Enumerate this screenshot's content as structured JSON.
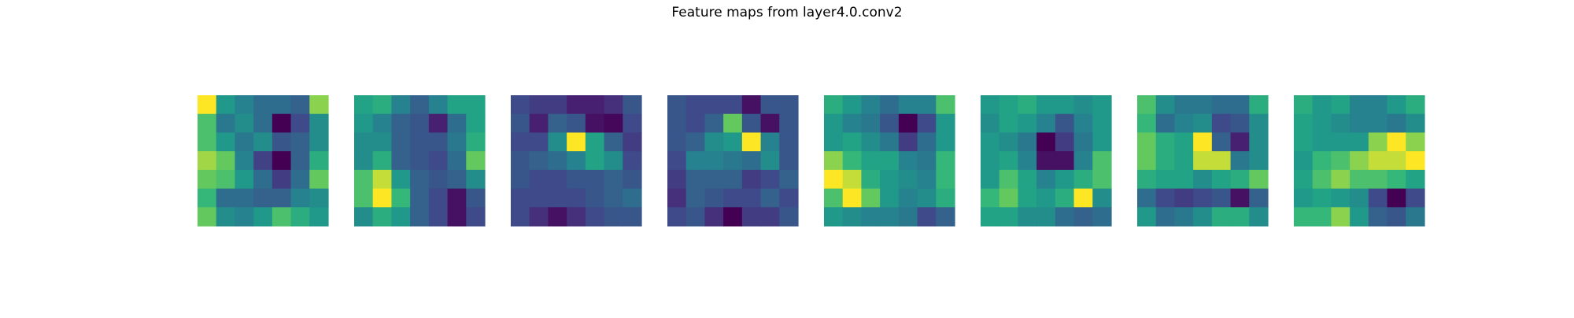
{
  "figure": {
    "title": "Feature maps from layer4.0.conv2"
  },
  "colormap": "viridis",
  "chart_data": {
    "type": "heatmap",
    "title": "Feature maps from layer4.0.conv2",
    "grid": false,
    "axes": "off",
    "value_range": [
      0,
      1
    ],
    "maps": [
      {
        "values": [
          [
            1.0,
            0.6,
            0.5,
            0.4,
            0.4,
            0.35,
            0.9
          ],
          [
            0.8,
            0.45,
            0.55,
            0.4,
            0.0,
            0.25,
            0.55
          ],
          [
            0.8,
            0.6,
            0.45,
            0.55,
            0.3,
            0.35,
            0.55
          ],
          [
            0.92,
            0.85,
            0.5,
            0.22,
            0.0,
            0.35,
            0.7
          ],
          [
            0.85,
            0.8,
            0.6,
            0.4,
            0.2,
            0.4,
            0.85
          ],
          [
            0.75,
            0.4,
            0.4,
            0.35,
            0.35,
            0.5,
            0.55
          ],
          [
            0.85,
            0.55,
            0.5,
            0.6,
            0.8,
            0.7,
            0.6
          ]
        ]
      },
      {
        "values": [
          [
            0.65,
            0.7,
            0.5,
            0.35,
            0.5,
            0.65,
            0.65
          ],
          [
            0.6,
            0.5,
            0.35,
            0.3,
            0.1,
            0.4,
            0.65
          ],
          [
            0.55,
            0.55,
            0.35,
            0.3,
            0.3,
            0.45,
            0.7
          ],
          [
            0.55,
            0.7,
            0.35,
            0.3,
            0.25,
            0.4,
            0.85
          ],
          [
            0.8,
            0.95,
            0.6,
            0.35,
            0.3,
            0.35,
            0.55
          ],
          [
            0.8,
            1.0,
            0.75,
            0.35,
            0.25,
            0.05,
            0.3
          ],
          [
            0.55,
            0.7,
            0.6,
            0.35,
            0.25,
            0.05,
            0.25
          ]
        ]
      },
      {
        "values": [
          [
            0.25,
            0.2,
            0.2,
            0.1,
            0.1,
            0.15,
            0.3
          ],
          [
            0.3,
            0.1,
            0.35,
            0.3,
            0.05,
            0.02,
            0.25
          ],
          [
            0.25,
            0.25,
            0.55,
            1.0,
            0.65,
            0.35,
            0.2
          ],
          [
            0.3,
            0.35,
            0.4,
            0.5,
            0.65,
            0.55,
            0.25
          ],
          [
            0.3,
            0.25,
            0.25,
            0.3,
            0.3,
            0.35,
            0.3
          ],
          [
            0.25,
            0.25,
            0.25,
            0.25,
            0.3,
            0.35,
            0.4
          ],
          [
            0.25,
            0.15,
            0.05,
            0.15,
            0.25,
            0.3,
            0.3
          ]
        ]
      },
      {
        "values": [
          [
            0.3,
            0.25,
            0.25,
            0.25,
            0.05,
            0.3,
            0.3
          ],
          [
            0.3,
            0.25,
            0.35,
            0.85,
            0.3,
            0.05,
            0.3
          ],
          [
            0.3,
            0.35,
            0.55,
            0.6,
            1.0,
            0.5,
            0.3
          ],
          [
            0.25,
            0.5,
            0.5,
            0.45,
            0.4,
            0.55,
            0.3
          ],
          [
            0.2,
            0.35,
            0.35,
            0.35,
            0.2,
            0.25,
            0.35
          ],
          [
            0.15,
            0.35,
            0.3,
            0.25,
            0.25,
            0.35,
            0.25
          ],
          [
            0.25,
            0.3,
            0.15,
            0.0,
            0.2,
            0.2,
            0.3
          ]
        ]
      },
      {
        "values": [
          [
            0.7,
            0.6,
            0.5,
            0.4,
            0.5,
            0.5,
            0.8
          ],
          [
            0.6,
            0.5,
            0.45,
            0.3,
            0.0,
            0.25,
            0.6
          ],
          [
            0.6,
            0.65,
            0.55,
            0.45,
            0.2,
            0.4,
            0.6
          ],
          [
            0.9,
            0.75,
            0.65,
            0.65,
            0.5,
            0.45,
            0.75
          ],
          [
            1.0,
            0.95,
            0.7,
            0.6,
            0.55,
            0.5,
            0.75
          ],
          [
            0.8,
            1.0,
            0.85,
            0.6,
            0.5,
            0.55,
            0.7
          ],
          [
            0.6,
            0.55,
            0.5,
            0.5,
            0.45,
            0.25,
            0.35
          ]
        ]
      },
      {
        "values": [
          [
            0.6,
            0.65,
            0.7,
            0.6,
            0.6,
            0.55,
            0.6
          ],
          [
            0.55,
            0.65,
            0.6,
            0.5,
            0.3,
            0.5,
            0.6
          ],
          [
            0.6,
            0.55,
            0.45,
            0.0,
            0.2,
            0.45,
            0.6
          ],
          [
            0.6,
            0.65,
            0.5,
            0.05,
            0.05,
            0.5,
            0.8
          ],
          [
            0.6,
            0.8,
            0.65,
            0.5,
            0.6,
            0.7,
            0.8
          ],
          [
            0.75,
            0.85,
            0.65,
            0.6,
            0.7,
            1.0,
            0.55
          ],
          [
            0.65,
            0.65,
            0.55,
            0.55,
            0.4,
            0.35,
            0.4
          ]
        ]
      },
      {
        "values": [
          [
            0.8,
            0.55,
            0.45,
            0.45,
            0.4,
            0.4,
            0.7
          ],
          [
            0.75,
            0.4,
            0.5,
            0.55,
            0.25,
            0.3,
            0.55
          ],
          [
            0.85,
            0.7,
            0.65,
            1.0,
            0.35,
            0.1,
            0.55
          ],
          [
            0.85,
            0.7,
            0.65,
            0.95,
            0.95,
            0.45,
            0.55
          ],
          [
            0.7,
            0.65,
            0.65,
            0.55,
            0.65,
            0.7,
            0.85
          ],
          [
            0.4,
            0.25,
            0.2,
            0.25,
            0.3,
            0.05,
            0.35
          ],
          [
            0.6,
            0.4,
            0.45,
            0.55,
            0.7,
            0.7,
            0.55
          ]
        ]
      },
      {
        "values": [
          [
            0.7,
            0.6,
            0.65,
            0.5,
            0.5,
            0.6,
            0.7
          ],
          [
            0.65,
            0.6,
            0.55,
            0.5,
            0.5,
            0.45,
            0.55
          ],
          [
            0.65,
            0.6,
            0.6,
            0.6,
            0.9,
            1.0,
            0.9
          ],
          [
            0.6,
            0.75,
            0.8,
            0.9,
            0.95,
            0.95,
            1.0
          ],
          [
            0.65,
            0.8,
            0.9,
            0.8,
            0.8,
            0.75,
            0.65
          ],
          [
            0.6,
            0.65,
            0.6,
            0.55,
            0.25,
            0.0,
            0.25
          ],
          [
            0.75,
            0.75,
            0.9,
            0.6,
            0.35,
            0.3,
            0.45
          ]
        ]
      }
    ]
  }
}
